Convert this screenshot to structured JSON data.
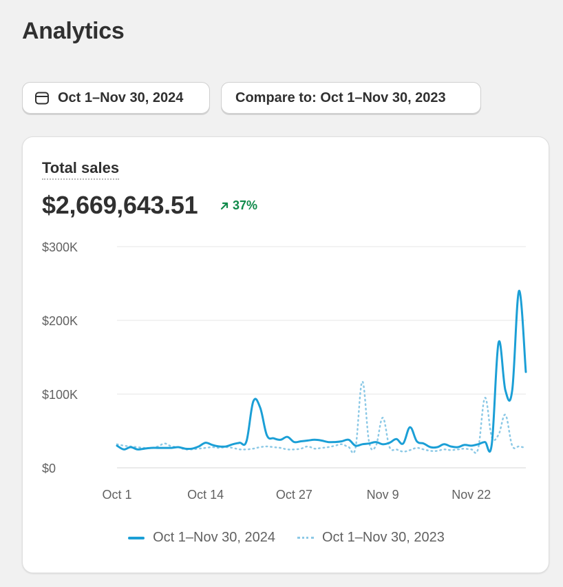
{
  "page": {
    "title": "Analytics"
  },
  "toolbar": {
    "date_range_label": "Oct 1–Nov 30, 2024",
    "compare_label": "Compare to: Oct 1–Nov 30, 2023"
  },
  "metric": {
    "label": "Total sales",
    "value": "$2,669,643.51",
    "change": "37%",
    "change_direction": "up",
    "change_color": "#0f8a4a"
  },
  "chart_data": {
    "type": "line",
    "x_start": "Oct 1",
    "x_end": "Nov 30",
    "x_tick_labels": [
      "Oct 1",
      "Oct 14",
      "Oct 27",
      "Nov 9",
      "Nov 22"
    ],
    "x_tick_days": [
      1,
      14,
      27,
      40,
      53
    ],
    "y_ticks": [
      0,
      100000,
      200000,
      300000
    ],
    "y_tick_labels": [
      "$0",
      "$100K",
      "$200K",
      "$300K"
    ],
    "ylim": [
      0,
      300000
    ],
    "grid": true,
    "legend_position": "bottom-center",
    "series": [
      {
        "name": "Oct 1–Nov 30, 2024",
        "style": "solid",
        "color": "#1b9fd6",
        "values": [
          30000,
          25000,
          28000,
          25000,
          26000,
          27000,
          27000,
          27000,
          27000,
          28000,
          26000,
          26000,
          29000,
          34000,
          31000,
          29000,
          29000,
          32000,
          34000,
          36000,
          90000,
          82000,
          44000,
          40000,
          38000,
          42000,
          35000,
          36000,
          37000,
          38000,
          37000,
          35000,
          35000,
          36000,
          38000,
          30000,
          32000,
          33000,
          35000,
          32000,
          34000,
          39000,
          33000,
          55000,
          36000,
          33000,
          28000,
          28000,
          32000,
          29000,
          28000,
          31000,
          30000,
          32000,
          35000,
          32000,
          170000,
          105000,
          105000,
          240000,
          130000
        ]
      },
      {
        "name": "Oct 1–Nov 30, 2023",
        "style": "dotted",
        "color": "#8cc9e6",
        "values": [
          32000,
          30000,
          29000,
          28000,
          27000,
          27000,
          29000,
          33000,
          29000,
          28000,
          25000,
          25000,
          26000,
          27000,
          28000,
          27000,
          28000,
          27000,
          25000,
          25000,
          26000,
          28000,
          29000,
          28000,
          27000,
          25000,
          25000,
          26000,
          29000,
          26000,
          27000,
          28000,
          30000,
          32000,
          28000,
          27000,
          117000,
          35000,
          30000,
          68000,
          28000,
          25000,
          22000,
          24000,
          27000,
          25000,
          23000,
          23000,
          25000,
          24000,
          25000,
          26000,
          25000,
          26000,
          95000,
          42000,
          45000,
          72000,
          30000,
          29000,
          27000
        ]
      }
    ]
  }
}
